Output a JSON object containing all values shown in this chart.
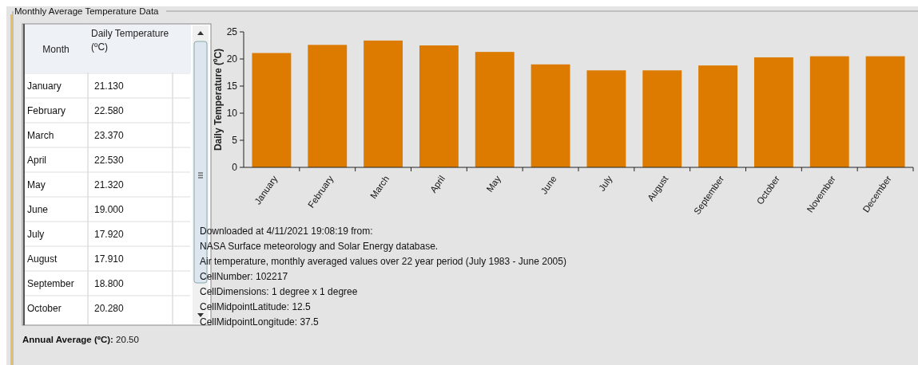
{
  "chart_data": [
    {
      "type": "other",
      "title": "Monthly Average Temperature Data",
      "annotations": [
        "Month",
        "Daily Temperature (ºC)",
        "January",
        "21.130",
        "February",
        "22.580",
        "March",
        "23.370",
        "April",
        "22.530",
        "May",
        "21.320",
        "June",
        "19.000",
        "July",
        "17.920",
        "August",
        "17.910",
        "September",
        "18.800",
        "October",
        "20.280",
        "Annual Average (ºC): 20.50"
      ]
    },
    {
      "type": "bar",
      "ylabel": "Daily Temperature (ºC)",
      "categories": [
        "January",
        "February",
        "March",
        "April",
        "May",
        "June",
        "July",
        "August",
        "September",
        "October",
        "November",
        "December"
      ],
      "values": [
        21.1,
        22.6,
        23.4,
        22.5,
        21.3,
        19.0,
        17.9,
        17.9,
        18.8,
        20.3,
        20.5,
        20.5
      ],
      "color": "#dc7b00",
      "ylim": [
        0,
        25
      ],
      "yticks": [
        0,
        5,
        10,
        15,
        20,
        25
      ],
      "annotations": [
        "Downloaded at 4/11/2021 19:08:19 from:",
        "NASA Surface meteorology and Solar Energy database.",
        "Air temperature, monthly averaged values over 22 year period (July 1983 - June 2005)",
        "CellNumber: 102217",
        "CellDimensions: 1 degree x 1 degree",
        "CellMidpointLatitude: 12.5",
        "CellMidpointLongitude: 37.5"
      ]
    }
  ]
}
